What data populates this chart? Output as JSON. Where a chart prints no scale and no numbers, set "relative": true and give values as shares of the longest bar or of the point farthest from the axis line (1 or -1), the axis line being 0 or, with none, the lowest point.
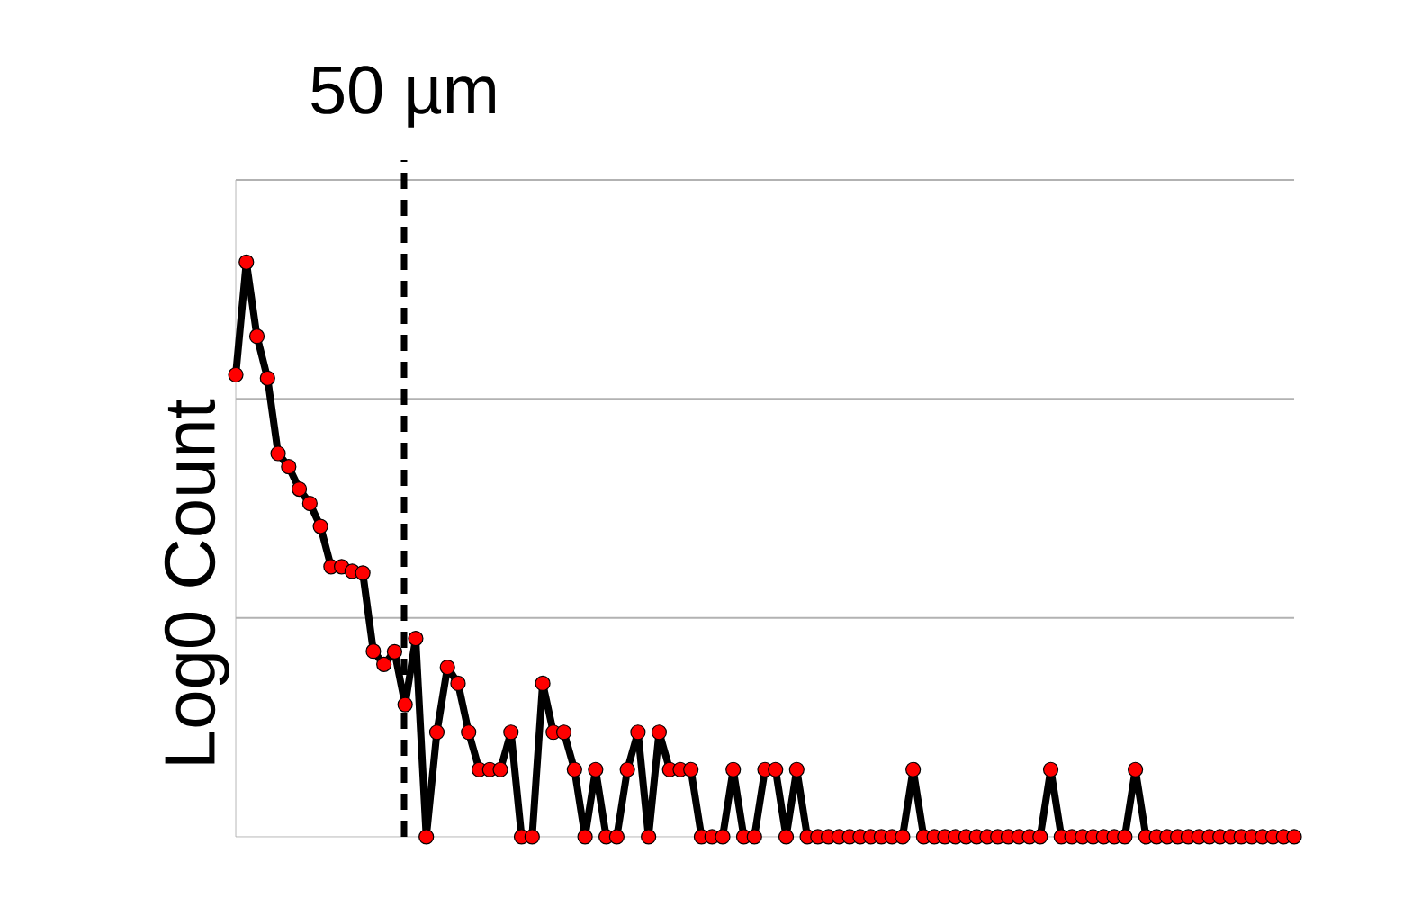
{
  "chart_data": {
    "type": "line",
    "relative": true,
    "ylabel": "Log0 Count",
    "annotations": [
      "50 µm"
    ],
    "categories": [
      null,
      null,
      null,
      null,
      null,
      null,
      null,
      null,
      null,
      null,
      null,
      null,
      null,
      null,
      null,
      null,
      null,
      null,
      null,
      null,
      null,
      null,
      null,
      null,
      null,
      null,
      null,
      null,
      null,
      null,
      null,
      null,
      null,
      null,
      null,
      null,
      null,
      null,
      null,
      null,
      null,
      null,
      null,
      null,
      null,
      null,
      null,
      null,
      null,
      null,
      null,
      null,
      null,
      null,
      null,
      null,
      null,
      null,
      null,
      null,
      null,
      null,
      null,
      null,
      null,
      null,
      null,
      null,
      null,
      null,
      null,
      null,
      null,
      null,
      null,
      null,
      null,
      null,
      null,
      null,
      null,
      null,
      null,
      null,
      null,
      null,
      null,
      null,
      null,
      null,
      null,
      null,
      null,
      null,
      null,
      null,
      null,
      null,
      null,
      null,
      null
    ],
    "series": [
      {
        "color": "#000000",
        "colors": [
          "#ff0000",
          "#ff0000",
          "#ff0000",
          "#ff0000",
          "#ff0000",
          "#ff0000",
          "#ff0000",
          "#ff0000",
          "#ff0000",
          "#ff0000",
          "#ff0000",
          "#ff0000",
          "#ff0000",
          "#ff0000",
          "#ff0000",
          "#ff0000",
          "#ff0000",
          "#ff0000",
          "#ff0000",
          "#ff0000",
          "#ff0000",
          "#ff0000",
          "#ff0000",
          "#ff0000",
          "#ff0000",
          "#ff0000",
          "#ff0000",
          "#ff0000",
          "#ff0000",
          "#ff0000",
          "#ff0000",
          "#ff0000",
          "#ff0000",
          "#ff0000",
          "#ff0000",
          "#ff0000",
          "#ff0000",
          "#ff0000",
          "#ff0000",
          "#ff0000",
          "#ff0000",
          "#ff0000",
          "#ff0000",
          "#ff0000",
          "#ff0000",
          "#ff0000",
          "#ff0000",
          "#ff0000",
          "#ff0000",
          "#ff0000",
          "#ff0000",
          "#ff0000",
          "#ff0000",
          "#ff0000",
          "#ff0000",
          "#ff0000",
          "#ff0000",
          "#ff0000",
          "#ff0000",
          "#ff0000",
          "#ff0000",
          "#ff0000",
          "#ff0000",
          "#ff0000",
          "#ff0000",
          "#ff0000",
          "#ff0000",
          "#ff0000",
          "#ff0000",
          "#ff0000",
          "#ff0000",
          "#ff0000",
          "#ff0000",
          "#ff0000",
          "#ff0000",
          "#ff0000",
          "#ff0000",
          "#ff0000",
          "#ff0000",
          "#ff0000",
          "#ff0000",
          "#ff0000",
          "#ff0000",
          "#ff0000",
          "#ff0000",
          "#ff0000",
          "#ff0000",
          "#ff0000",
          "#ff0000",
          "#ff0000",
          "#ff0000",
          "#ff0000",
          "#ff0000",
          "#ff0000",
          "#ff0000",
          "#ff0000",
          "#ff0000",
          "#ff0000",
          "#ff0000",
          "#ff0000",
          "#ff0000"
        ],
        "values": [
          0.804,
          1.0,
          0.871,
          0.798,
          0.667,
          0.644,
          0.605,
          0.58,
          0.54,
          0.47,
          0.47,
          0.462,
          0.459,
          0.323,
          0.3,
          0.322,
          0.23,
          0.345,
          0,
          0.182,
          0.295,
          0.267,
          0.182,
          0.117,
          0.117,
          0.117,
          0.182,
          0,
          0,
          0.267,
          0.182,
          0.182,
          0.117,
          0,
          0.117,
          0,
          0,
          0.117,
          0.182,
          0,
          0.182,
          0.117,
          0.117,
          0.117,
          0,
          0,
          0,
          0.117,
          0,
          0,
          0.117,
          0.117,
          0,
          0.117,
          0,
          0,
          0,
          0,
          0,
          0,
          0,
          0,
          0,
          0,
          0.117,
          0,
          0,
          0,
          0,
          0,
          0,
          0,
          0,
          0,
          0,
          0,
          0,
          0.117,
          0,
          0,
          0,
          0,
          0,
          0,
          0,
          0.117,
          0,
          0,
          0,
          0,
          0,
          0,
          0,
          0,
          0,
          0,
          0,
          0,
          0,
          0,
          0
        ]
      }
    ],
    "ref_lines": [
      {
        "axis": "y",
        "value": 0.381,
        "color": "#b2b2b2"
      },
      {
        "axis": "y",
        "value": 0.762,
        "color": "#b2b2b2"
      },
      {
        "axis": "y",
        "value": 1.143,
        "color": "#b2b2b2"
      }
    ],
    "marker": "circle",
    "line_style": "solid"
  }
}
